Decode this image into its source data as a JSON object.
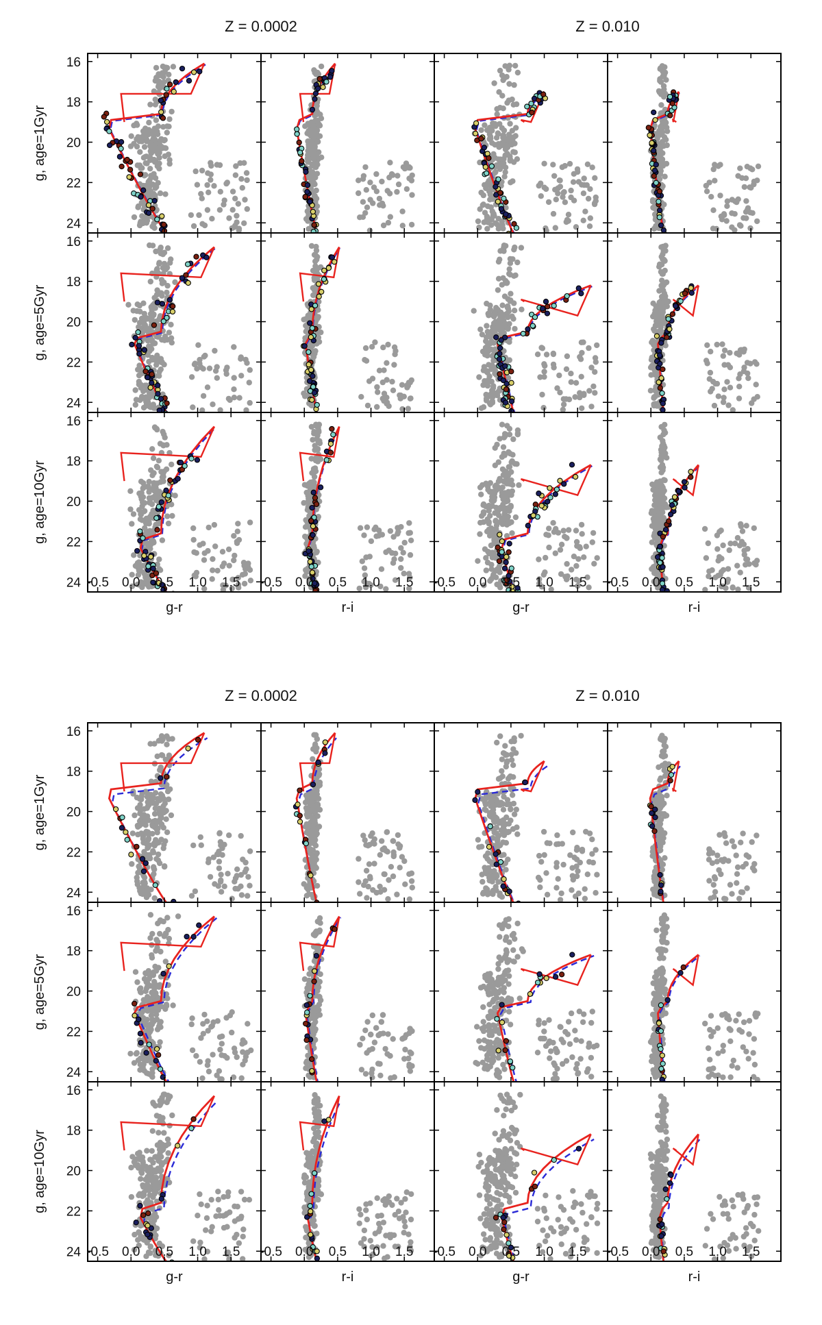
{
  "figure": {
    "z_labels": [
      "Z = 0.0002",
      "Z = 0.010"
    ],
    "row_labels": [
      "g, age=1Gyr",
      "g, age=5Gyr",
      "g, age=10Gyr"
    ],
    "x_labels": [
      "g-r",
      "r-i",
      "g-r",
      "r-i"
    ],
    "x_ticks": [
      -0.5,
      0.0,
      0.5,
      1.0,
      1.5
    ],
    "x_tick_labels": [
      "-0.5",
      "0.0",
      "0.5",
      "1.0",
      "1.5"
    ],
    "y_ticks": [
      16,
      18,
      20,
      22,
      24
    ],
    "y_tick_labels": [
      "16",
      "18",
      "20",
      "22",
      "24"
    ]
  },
  "colors": {
    "background_stars": "#9a9a9a",
    "model_line": "#e8231e",
    "isochrone_line": "#2a2ad6",
    "member_fill_blue": "#1a1f5e",
    "member_fill_red": "#7a2010",
    "member_fill_cyan": "#7fd3c8",
    "member_fill_yellow": "#d8cf6a"
  },
  "chart_data": [
    {
      "type": "scatter",
      "panel_grid": "3 rows x 4 columns",
      "columns": [
        {
          "metallicity": "Z = 0.0002",
          "xlabel": "g-r"
        },
        {
          "metallicity": "Z = 0.0002",
          "xlabel": "r-i"
        },
        {
          "metallicity": "Z = 0.010",
          "xlabel": "g-r"
        },
        {
          "metallicity": "Z = 0.010",
          "xlabel": "r-i"
        }
      ],
      "rows": [
        {
          "ylabel": "g, age=1Gyr"
        },
        {
          "ylabel": "g, age=5Gyr"
        },
        {
          "ylabel": "g, age=10Gyr"
        }
      ],
      "xlim": [
        -0.65,
        1.95
      ],
      "ylim": [
        24.5,
        15.6
      ],
      "y_inverted": true,
      "series": [
        {
          "style": "gray filled dots"
        },
        {
          "style": "red solid line"
        },
        {
          "style": "blue dashed line"
        },
        {
          "style": "colored circles with black edge"
        }
      ]
    },
    {
      "type": "scatter",
      "panel_grid": "3 rows x 4 columns",
      "columns": [
        {
          "metallicity": "Z = 0.0002",
          "xlabel": "g-r"
        },
        {
          "metallicity": "Z = 0.0002",
          "xlabel": "r-i"
        },
        {
          "metallicity": "Z = 0.010",
          "xlabel": "g-r"
        },
        {
          "metallicity": "Z = 0.010",
          "xlabel": "r-i"
        }
      ],
      "rows": [
        {
          "ylabel": "g, age=1Gyr"
        },
        {
          "ylabel": "g, age=5Gyr"
        },
        {
          "ylabel": "g, age=10Gyr"
        }
      ],
      "xlim": [
        -0.65,
        1.95
      ],
      "ylim": [
        24.5,
        15.6
      ],
      "y_inverted": true,
      "series": [
        {
          "style": "gray filled dots"
        },
        {
          "style": "red solid line"
        },
        {
          "style": "blue dashed line"
        },
        {
          "style": "colored circles with black edge"
        }
      ]
    }
  ]
}
